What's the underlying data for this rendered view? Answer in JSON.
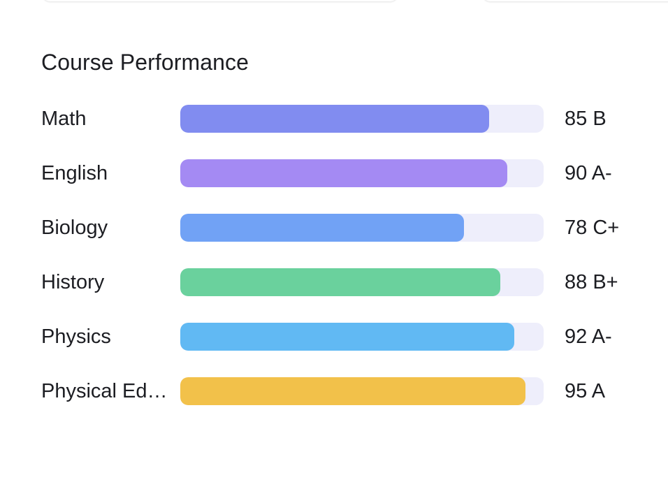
{
  "card": {
    "title": "Course Performance"
  },
  "courses": [
    {
      "name": "Math",
      "score": 85,
      "grade": "B",
      "score_text": "85 B",
      "color": "#818cf0"
    },
    {
      "name": "English",
      "score": 90,
      "grade": "A-",
      "score_text": "90 A-",
      "color": "#a48af3"
    },
    {
      "name": "Biology",
      "score": 78,
      "grade": "C+",
      "score_text": "78 C+",
      "color": "#71a2f5"
    },
    {
      "name": "History",
      "score": 88,
      "grade": "B+",
      "score_text": "88 B+",
      "color": "#6ad19d"
    },
    {
      "name": "Physics",
      "score": 92,
      "grade": "A-",
      "score_text": "92 A-",
      "color": "#61b9f3"
    },
    {
      "name": "Physical Education",
      "score": 95,
      "grade": "A",
      "score_text": "95 A",
      "color": "#f2c14a"
    }
  ],
  "colors": {
    "track": "#eeeefb",
    "text": "#1c1d22"
  }
}
